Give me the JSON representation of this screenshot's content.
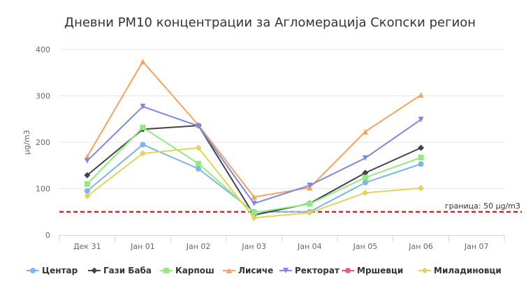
{
  "chart_data": {
    "type": "line",
    "title": "Дневни PM10 концентрации за Агломерација Скопски регион",
    "ylabel": "μg/m3",
    "xlabel": "",
    "categories": [
      "Дек 31",
      "Јан 01",
      "Јан 02",
      "Јан 03",
      "Јан 04",
      "Јан 05",
      "Јан 06",
      "Јан 07"
    ],
    "yticks": [
      0,
      100,
      200,
      300,
      400
    ],
    "ylim": [
      0,
      400
    ],
    "grid": true,
    "legend_position": "bottom",
    "limit_line": {
      "value": 50,
      "label": "граница: 50 μg/m3",
      "color": "#cc0000"
    },
    "series": [
      {
        "name": "Центар",
        "color": "#7cb5ec",
        "marker": "circle",
        "values": [
          95,
          195,
          143,
          50,
          50,
          113,
          153,
          null
        ]
      },
      {
        "name": "Гази Баба",
        "color": "#434348",
        "marker": "diamond",
        "values": [
          129,
          228,
          236,
          43,
          68,
          134,
          188,
          null
        ]
      },
      {
        "name": "Карпош",
        "color": "#90ed7d",
        "marker": "square",
        "values": [
          110,
          232,
          154,
          48,
          67,
          124,
          167,
          null
        ]
      },
      {
        "name": "Лисиче",
        "color": "#f7a35c",
        "marker": "triangle",
        "values": [
          169,
          374,
          237,
          82,
          102,
          223,
          302,
          null
        ]
      },
      {
        "name": "Ректорат",
        "color": "#8085e9",
        "marker": "triangle-down",
        "values": [
          160,
          277,
          235,
          68,
          107,
          166,
          249,
          null
        ]
      },
      {
        "name": "Мршевци",
        "color": "#f15c80",
        "marker": "circle",
        "values": [
          null,
          null,
          null,
          null,
          null,
          null,
          null,
          null
        ]
      },
      {
        "name": "Миладиновци",
        "color": "#e4d354",
        "marker": "diamond",
        "values": [
          84,
          176,
          188,
          37,
          48,
          91,
          101,
          null
        ]
      }
    ]
  }
}
